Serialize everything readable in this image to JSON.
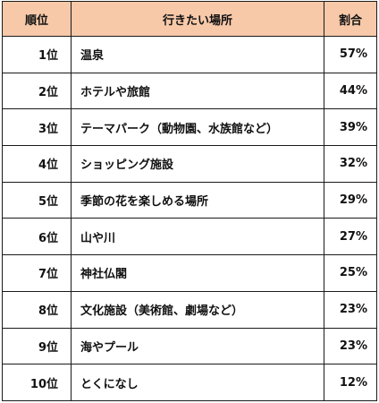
{
  "table": {
    "headers": {
      "rank": "順位",
      "place": "行きたい場所",
      "ratio": "割合"
    },
    "rows": [
      {
        "rank": "1位",
        "place": "温泉",
        "ratio": "57%"
      },
      {
        "rank": "2位",
        "place": "ホテルや旅館",
        "ratio": "44%"
      },
      {
        "rank": "3位",
        "place": "テーマパーク（動物園、水族館など）",
        "ratio": "39%"
      },
      {
        "rank": "4位",
        "place": "ショッピング施設",
        "ratio": "32%"
      },
      {
        "rank": "5位",
        "place": "季節の花を楽しめる場所",
        "ratio": "29%"
      },
      {
        "rank": "6位",
        "place": "山や川",
        "ratio": "27%"
      },
      {
        "rank": "7位",
        "place": "神社仏閣",
        "ratio": "25%"
      },
      {
        "rank": "8位",
        "place": "文化施設（美術館、劇場など）",
        "ratio": "23%"
      },
      {
        "rank": "9位",
        "place": "海やプール",
        "ratio": "23%"
      },
      {
        "rank": "10位",
        "place": "とくになし",
        "ratio": "12%"
      }
    ]
  },
  "colors": {
    "header_bg": "#f7c9a9",
    "border": "#1a1a1a"
  }
}
